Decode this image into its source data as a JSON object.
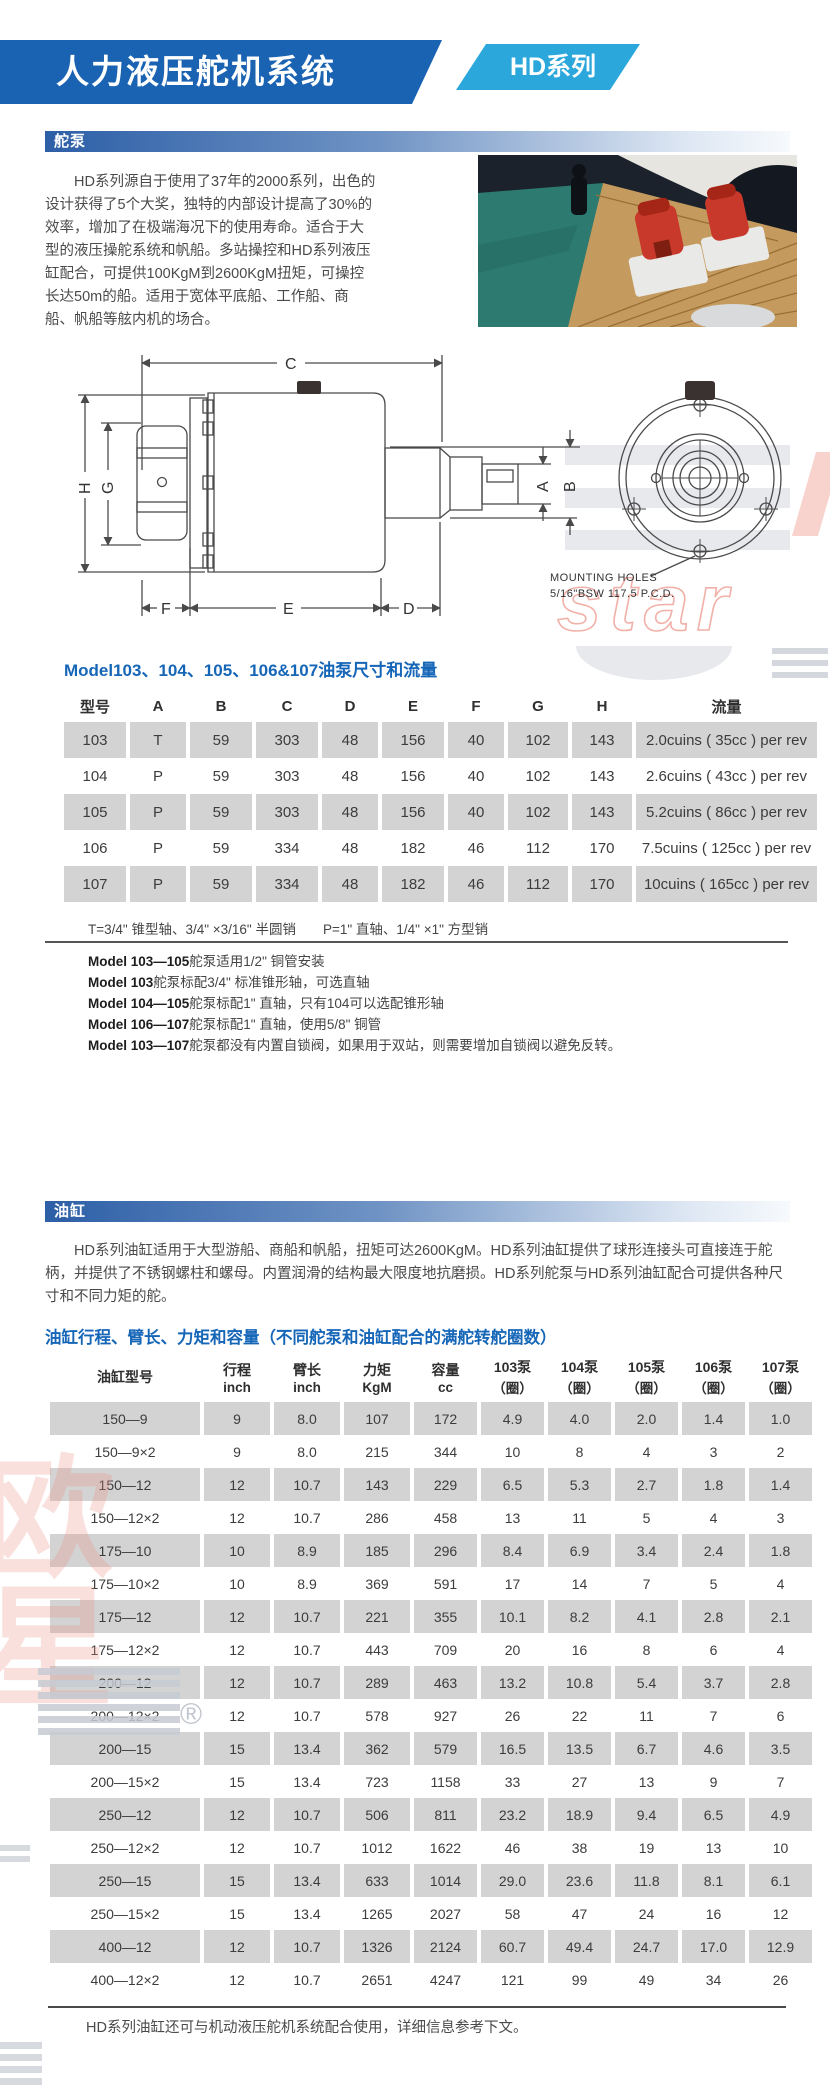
{
  "header": {
    "title": "人力液压舵机系统",
    "series_badge": "HD系列"
  },
  "colors": {
    "header_blue": "#1a63b2",
    "badge_blue": "#2ba7dc",
    "title_blue": "#1666b8",
    "row_gray": "#d3d3d3",
    "section_bar_blue": "#2d5fa7"
  },
  "pump_section": {
    "heading": "舵泵",
    "description": "HD系列源自于使用了37年的2000系列，出色的设计获得了5个大奖，独特的内部设计提高了30%的效率，增加了在极端海况下的使用寿命。适合于大型的液压操舵系统和帆船。多站操控和HD系列液压缸配合，可提供100KgM到2600KgM扭矩，可操控长达50m的船。适用于宽体平底船、工作船、商船、帆船等舷内机的场合。",
    "diagram": {
      "labels": {
        "c": "C",
        "a": "A",
        "b": "B",
        "h": "H",
        "g": "G",
        "f": "F",
        "e": "E",
        "d": "D"
      },
      "mounting_line1": "MOUNTING HOLES",
      "mounting_line2": "5/16\"BSW  117.5  P.C.D."
    },
    "table_title": "Model103、104、105、106&107油泵尺寸和流量",
    "table": {
      "headers": [
        "型号",
        "A",
        "B",
        "C",
        "D",
        "E",
        "F",
        "G",
        "H",
        "流量"
      ],
      "rows": [
        [
          "103",
          "T",
          "59",
          "303",
          "48",
          "156",
          "40",
          "102",
          "143",
          "2.0cuins ( 35cc ) per rev"
        ],
        [
          "104",
          "P",
          "59",
          "303",
          "48",
          "156",
          "40",
          "102",
          "143",
          "2.6cuins ( 43cc ) per rev"
        ],
        [
          "105",
          "P",
          "59",
          "303",
          "48",
          "156",
          "40",
          "102",
          "143",
          "5.2cuins ( 86cc ) per rev"
        ],
        [
          "106",
          "P",
          "59",
          "334",
          "48",
          "182",
          "46",
          "112",
          "170",
          "7.5cuins ( 125cc ) per rev"
        ],
        [
          "107",
          "P",
          "59",
          "334",
          "48",
          "182",
          "46",
          "112",
          "170",
          "10cuins ( 165cc ) per rev"
        ]
      ]
    },
    "shaft_note": "T=3/4\" 锥型轴、3/4\" ×3/16\" 半圆销　　P=1\" 直轴、1/4\" ×1\" 方型销",
    "model_notes": [
      {
        "bold": "Model 103—105",
        "rest": "舵泵适用1/2\" 铜管安装"
      },
      {
        "bold": "Model 103",
        "rest": "舵泵标配3/4\" 标准锥形轴，可选直轴"
      },
      {
        "bold": "Model 104—105",
        "rest": "舵泵标配1\" 直轴，只有104可以选配锥形轴"
      },
      {
        "bold": "Model 106—107",
        "rest": "舵泵标配1\" 直轴，使用5/8\" 铜管"
      },
      {
        "bold": "Model 103—107",
        "rest": "舵泵都没有内置自锁阀，如果用于双站，则需要增加自锁阀以避免反转。"
      }
    ]
  },
  "cylinder_section": {
    "heading": "油缸",
    "description": "HD系列油缸适用于大型游船、商船和帆船，扭矩可达2600KgM。HD系列油缸提供了球形连接头可直接连于舵柄，并提供了不锈钢螺柱和螺母。内置润滑的结构最大限度地抗磨损。HD系列舵泵与HD系列油缸配合可提供各种尺寸和不同力矩的舵。",
    "table_title": "油缸行程、臂长、力矩和容量（不同舵泵和油缸配合的满舵转舵圈数）",
    "table": {
      "headers": [
        [
          "油缸型号",
          ""
        ],
        [
          "行程",
          "inch"
        ],
        [
          "臂长",
          "inch"
        ],
        [
          "力矩",
          "KgM"
        ],
        [
          "容量",
          "cc"
        ],
        [
          "103泵",
          "（圈）"
        ],
        [
          "104泵",
          "（圈）"
        ],
        [
          "105泵",
          "（圈）"
        ],
        [
          "106泵",
          "（圈）"
        ],
        [
          "107泵",
          "（圈）"
        ]
      ],
      "rows": [
        [
          "150—9",
          "9",
          "8.0",
          "107",
          "172",
          "4.9",
          "4.0",
          "2.0",
          "1.4",
          "1.0"
        ],
        [
          "150—9×2",
          "9",
          "8.0",
          "215",
          "344",
          "10",
          "8",
          "4",
          "3",
          "2"
        ],
        [
          "150—12",
          "12",
          "10.7",
          "143",
          "229",
          "6.5",
          "5.3",
          "2.7",
          "1.8",
          "1.4"
        ],
        [
          "150—12×2",
          "12",
          "10.7",
          "286",
          "458",
          "13",
          "11",
          "5",
          "4",
          "3"
        ],
        [
          "175—10",
          "10",
          "8.9",
          "185",
          "296",
          "8.4",
          "6.9",
          "3.4",
          "2.4",
          "1.8"
        ],
        [
          "175—10×2",
          "10",
          "8.9",
          "369",
          "591",
          "17",
          "14",
          "7",
          "5",
          "4"
        ],
        [
          "175—12",
          "12",
          "10.7",
          "221",
          "355",
          "10.1",
          "8.2",
          "4.1",
          "2.8",
          "2.1"
        ],
        [
          "175—12×2",
          "12",
          "10.7",
          "443",
          "709",
          "20",
          "16",
          "8",
          "6",
          "4"
        ],
        [
          "200—12",
          "12",
          "10.7",
          "289",
          "463",
          "13.2",
          "10.8",
          "5.4",
          "3.7",
          "2.8"
        ],
        [
          "200—12×2",
          "12",
          "10.7",
          "578",
          "927",
          "26",
          "22",
          "11",
          "7",
          "6"
        ],
        [
          "200—15",
          "15",
          "13.4",
          "362",
          "579",
          "16.5",
          "13.5",
          "6.7",
          "4.6",
          "3.5"
        ],
        [
          "200—15×2",
          "15",
          "13.4",
          "723",
          "1158",
          "33",
          "27",
          "13",
          "9",
          "7"
        ],
        [
          "250—12",
          "12",
          "10.7",
          "506",
          "811",
          "23.2",
          "18.9",
          "9.4",
          "6.5",
          "4.9"
        ],
        [
          "250—12×2",
          "12",
          "10.7",
          "1012",
          "1622",
          "46",
          "38",
          "19",
          "13",
          "10"
        ],
        [
          "250—15",
          "15",
          "13.4",
          "633",
          "1014",
          "29.0",
          "23.6",
          "11.8",
          "8.1",
          "6.1"
        ],
        [
          "250—15×2",
          "15",
          "13.4",
          "1265",
          "2027",
          "58",
          "47",
          "24",
          "16",
          "12"
        ],
        [
          "400—12",
          "12",
          "10.7",
          "1326",
          "2124",
          "60.7",
          "49.4",
          "24.7",
          "17.0",
          "12.9"
        ],
        [
          "400—12×2",
          "12",
          "10.7",
          "2651",
          "4247",
          "121",
          "99",
          "49",
          "34",
          "26"
        ]
      ]
    },
    "footer_note": "HD系列油缸还可与机动液压舵机系统配合使用，详细信息参考下文。"
  },
  "watermarks": {
    "star_text": "star",
    "registered": "®",
    "brand_char1": "欧",
    "brand_char2": "星"
  }
}
